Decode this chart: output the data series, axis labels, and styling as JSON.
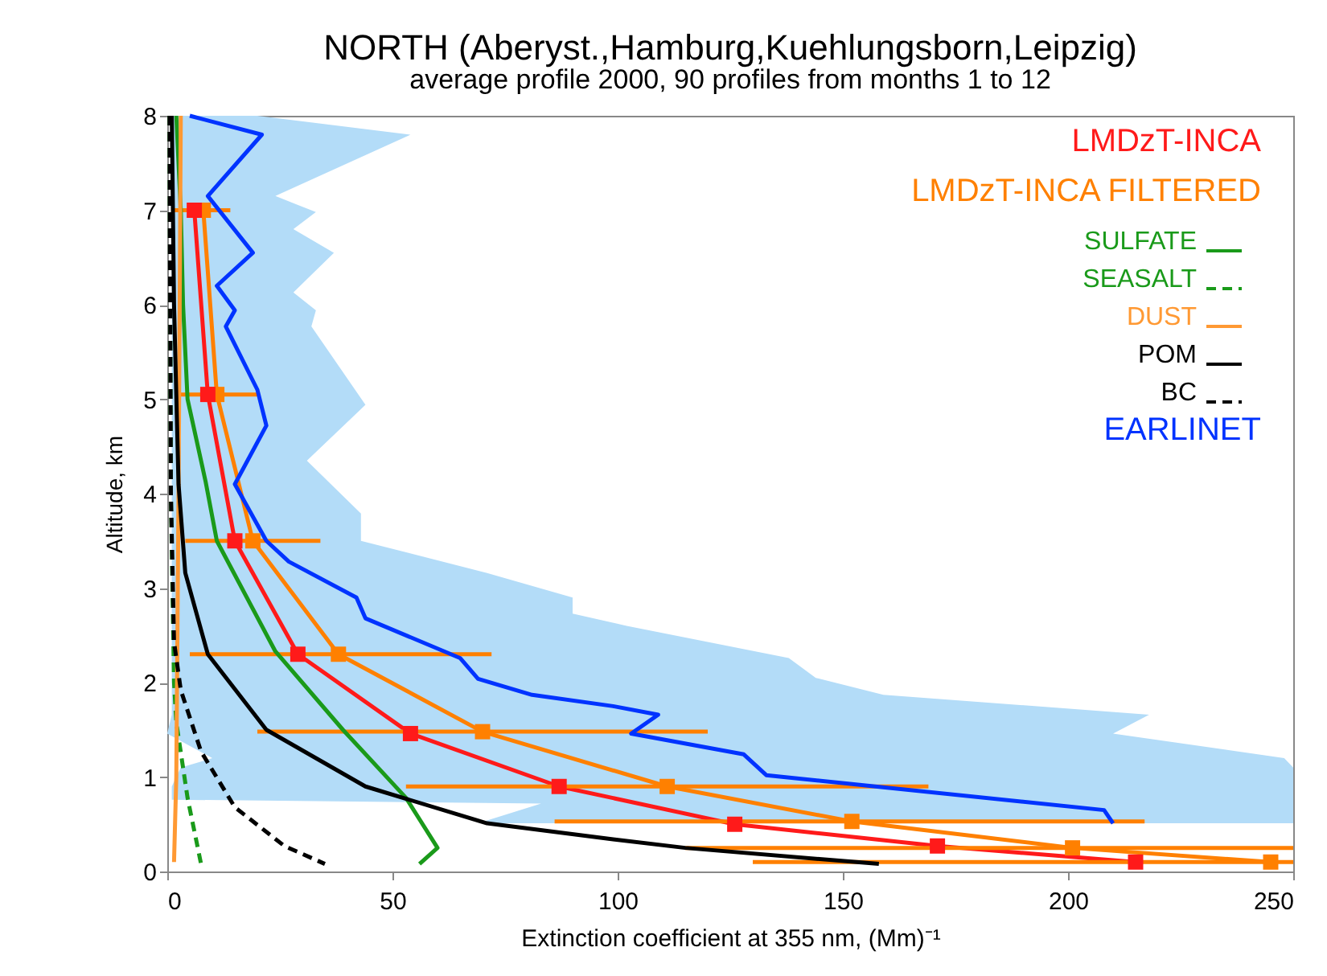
{
  "chart_data": {
    "type": "line",
    "title": "NORTH (Aberyst.,Hamburg,Kuehlungsborn,Leipzig)",
    "subtitle": "average profile 2000,  90 profiles from months 1 to 12",
    "xlabel": "Extinction coefficient at 355 nm, (Mm)⁻¹",
    "ylabel": "Altitude, km",
    "orientation": "horizontal",
    "xlim": [
      0,
      250
    ],
    "xticks": [
      0,
      50,
      100,
      150,
      200,
      250
    ],
    "ylim": [
      0,
      8
    ],
    "yticks": [
      0,
      1,
      2,
      3,
      4,
      5,
      6,
      7,
      8
    ],
    "grid": false,
    "legend": "top right",
    "series": [
      {
        "type": "area",
        "color": "#b3dcf8",
        "values": [
          null,
          null,
          null,
          null,
          null,
          null,
          null,
          null,
          null,
          null,
          null,
          null,
          null,
          null,
          null,
          null,
          null,
          null,
          null,
          null,
          null,
          null,
          null,
          null,
          null,
          null,
          null,
          null
        ],
        "x": [
          8.0,
          7.8,
          7.15,
          6.98,
          6.8,
          6.55,
          6.13,
          5.94,
          5.77,
          4.94,
          4.35,
          3.79,
          3.5,
          3.16,
          2.9,
          2.73,
          2.6,
          2.26,
          2.05,
          1.87,
          1.66,
          1.46,
          1.2,
          1.1,
          0.9,
          0.76,
          0.72,
          0.51
        ],
        "lower": [
          1,
          1,
          1,
          1,
          1,
          1,
          1,
          1,
          1,
          1,
          1,
          1,
          1,
          1,
          1,
          1,
          1,
          1,
          1,
          1,
          1,
          0,
          10,
          3,
          1,
          1,
          83,
          69
        ],
        "upper": [
          20,
          54,
          24,
          33,
          28,
          37,
          28,
          33,
          32,
          44,
          31,
          43,
          43,
          71,
          90,
          90,
          102,
          138,
          144,
          159,
          218,
          210,
          248,
          250,
          250,
          250,
          250,
          250
        ]
      },
      {
        "name": "LMDzT-INCA",
        "color": "#ff1a1a",
        "marker": "square",
        "x": [
          7.0,
          5.05,
          3.5,
          2.3,
          1.46,
          0.9,
          0.5,
          0.27,
          0.1
        ],
        "values": [
          6,
          9,
          15,
          29,
          54,
          87,
          126,
          171,
          215
        ]
      },
      {
        "name": "LMDzT-INCA FILTERED",
        "color": "#ff8000",
        "marker": "square",
        "x": [
          7.0,
          5.05,
          3.5,
          2.3,
          1.48,
          0.9,
          0.53,
          0.25,
          0.1
        ],
        "values": [
          8,
          11,
          19,
          38,
          70,
          111,
          152,
          201,
          245
        ],
        "errors": [
          [
            1.5,
            14
          ],
          [
            2,
            20
          ],
          [
            4,
            34
          ],
          [
            5,
            72
          ],
          [
            20,
            120
          ],
          [
            53,
            169
          ],
          [
            86,
            217
          ],
          [
            115,
            250
          ],
          [
            130,
            250
          ]
        ]
      },
      {
        "name": "SULFATE",
        "color": "#1a9a1a",
        "line_style": "solid",
        "x": [
          8,
          7,
          6,
          5,
          4.13,
          3.5,
          2.33,
          1.5,
          0.78,
          0.25,
          0.08
        ],
        "values": [
          2,
          3,
          3.5,
          4.5,
          8.5,
          11,
          24,
          39,
          53,
          60,
          56
        ]
      },
      {
        "name": "SEASALT",
        "color": "#1a9a1a",
        "line_style": "dashed",
        "x": [
          8,
          4,
          2,
          1.58,
          0.78,
          0.08
        ],
        "values": [
          0.5,
          0.8,
          1.5,
          2,
          4.5,
          7.5
        ]
      },
      {
        "name": "DUST",
        "color": "#ff9933",
        "line_style": "solid",
        "x": [
          8,
          4,
          1,
          0.1
        ],
        "values": [
          3,
          2.5,
          2,
          1.5
        ]
      },
      {
        "name": "POM",
        "color": "#000000",
        "line_style": "solid",
        "x": [
          8,
          6,
          4.1,
          3.16,
          2.3,
          1.5,
          0.9,
          0.51,
          0.34,
          0.25,
          0.08
        ],
        "values": [
          1,
          1.5,
          2.5,
          4,
          9,
          22,
          44,
          71,
          99,
          115,
          158
        ]
      },
      {
        "name": "BC",
        "color": "#000000",
        "line_style": "dashed",
        "x": [
          8,
          4,
          2.43,
          1.92,
          1.27,
          0.68,
          0.27,
          0.08
        ],
        "values": [
          0.5,
          0.8,
          1.5,
          3,
          7.5,
          15,
          26,
          35
        ]
      },
      {
        "name": "EARLINET",
        "color": "#0033ff",
        "x": [
          8.0,
          7.8,
          7.15,
          6.55,
          6.2,
          5.94,
          5.77,
          5.1,
          4.72,
          4.1,
          3.5,
          3.28,
          2.9,
          2.68,
          2.26,
          2.04,
          1.87,
          1.75,
          1.66,
          1.46,
          1.24,
          1.02,
          0.65,
          0.51
        ],
        "values": [
          5,
          21,
          9,
          19,
          11,
          15,
          13,
          20,
          22,
          15,
          22,
          27,
          42,
          44,
          65,
          69,
          81,
          99,
          109,
          103,
          128,
          133,
          208,
          210
        ]
      }
    ]
  }
}
